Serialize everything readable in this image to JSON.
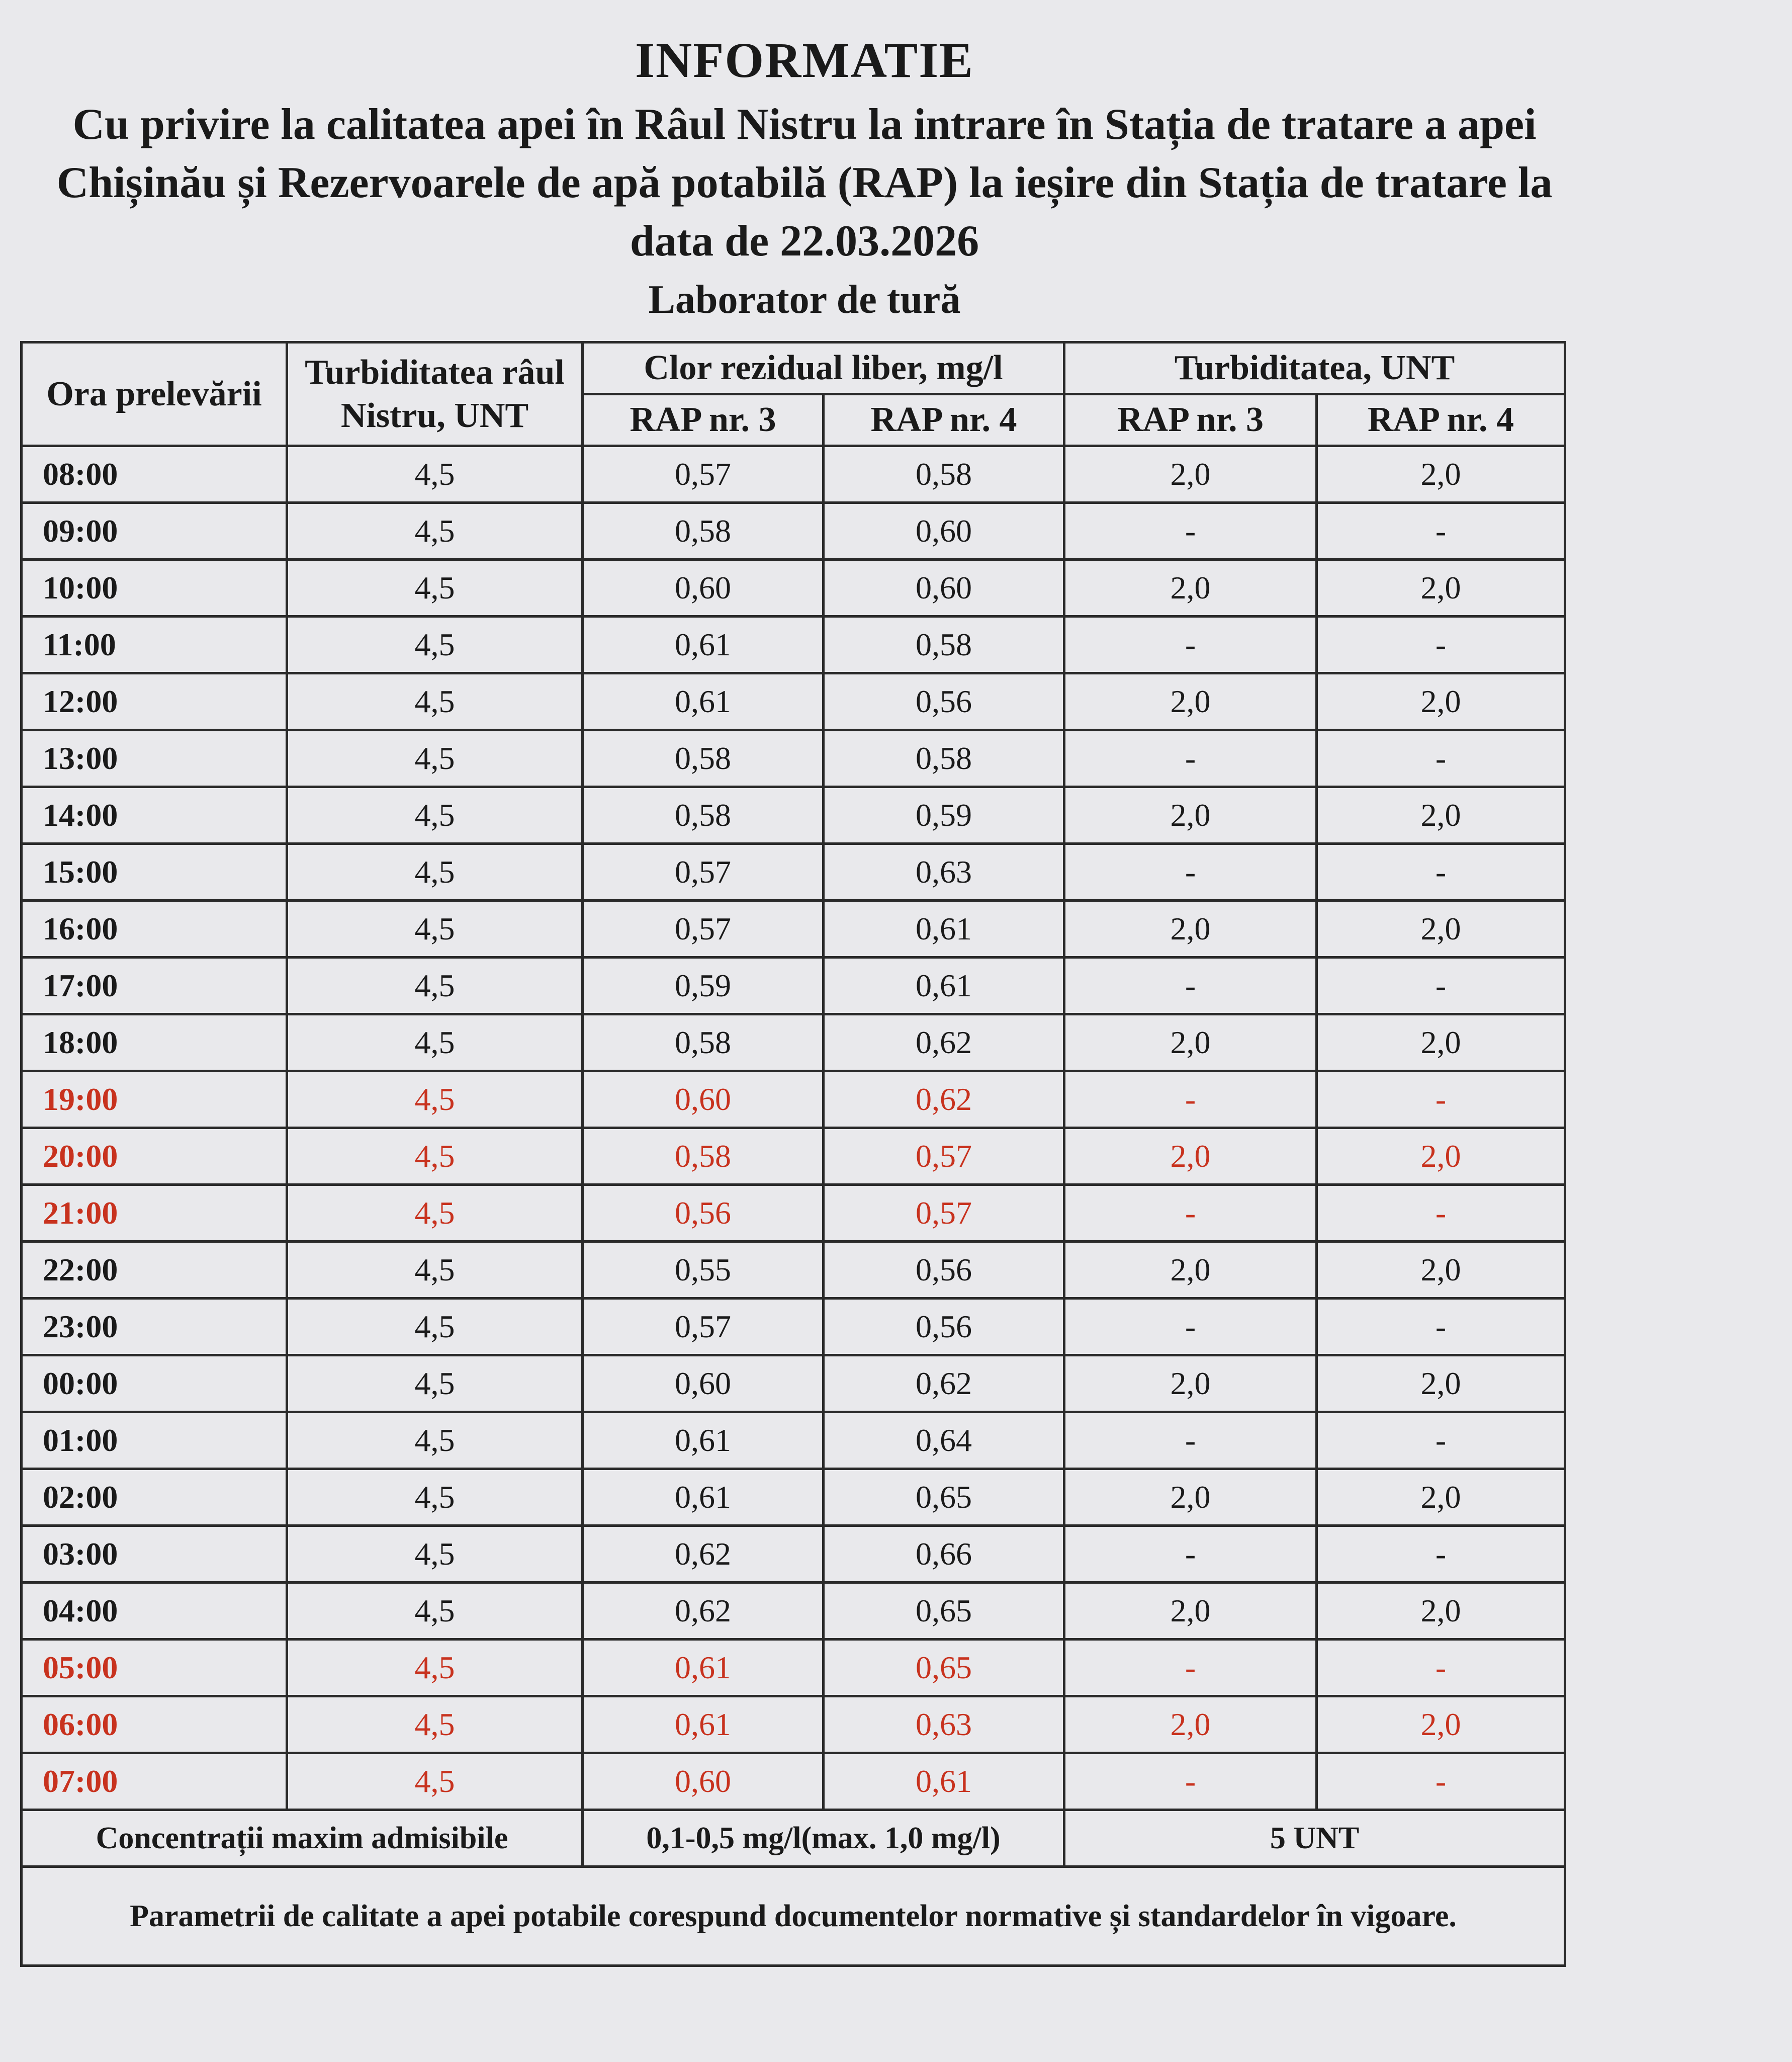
{
  "title": "INFORMATIE",
  "subtitle": "Cu privire la calitatea apei în Râul Nistru la intrare în Stația de tratare a apei Chișinău și Rezervoarele de apă potabilă (RAP) la ieșire din Stația de tratare la data de 22.03.2026",
  "lab": "Laborator de tură",
  "colors": {
    "highlight": "#c8321e",
    "text": "#1a1a1a"
  },
  "headers": {
    "time": "Ora prelevării",
    "turb_river": "Turbiditatea râul Nistru, UNT",
    "chlorine": "Clor rezidual liber, mg/l",
    "turbidity": "Turbiditatea, UNT",
    "rap3": "RAP nr. 3",
    "rap4": "RAP nr. 4"
  },
  "rows": [
    {
      "time": "08:00",
      "river": "4,5",
      "cl3": "0,57",
      "cl4": "0,58",
      "t3": "2,0",
      "t4": "2,0",
      "red": false
    },
    {
      "time": "09:00",
      "river": "4,5",
      "cl3": "0,58",
      "cl4": "0,60",
      "t3": "-",
      "t4": "-",
      "red": false
    },
    {
      "time": "10:00",
      "river": "4,5",
      "cl3": "0,60",
      "cl4": "0,60",
      "t3": "2,0",
      "t4": "2,0",
      "red": false
    },
    {
      "time": "11:00",
      "river": "4,5",
      "cl3": "0,61",
      "cl4": "0,58",
      "t3": "-",
      "t4": "-",
      "red": false
    },
    {
      "time": "12:00",
      "river": "4,5",
      "cl3": "0,61",
      "cl4": "0,56",
      "t3": "2,0",
      "t4": "2,0",
      "red": false
    },
    {
      "time": "13:00",
      "river": "4,5",
      "cl3": "0,58",
      "cl4": "0,58",
      "t3": "-",
      "t4": "-",
      "red": false
    },
    {
      "time": "14:00",
      "river": "4,5",
      "cl3": "0,58",
      "cl4": "0,59",
      "t3": "2,0",
      "t4": "2,0",
      "red": false
    },
    {
      "time": "15:00",
      "river": "4,5",
      "cl3": "0,57",
      "cl4": "0,63",
      "t3": "-",
      "t4": "-",
      "red": false
    },
    {
      "time": "16:00",
      "river": "4,5",
      "cl3": "0,57",
      "cl4": "0,61",
      "t3": "2,0",
      "t4": "2,0",
      "red": false
    },
    {
      "time": "17:00",
      "river": "4,5",
      "cl3": "0,59",
      "cl4": "0,61",
      "t3": "-",
      "t4": "-",
      "red": false
    },
    {
      "time": "18:00",
      "river": "4,5",
      "cl3": "0,58",
      "cl4": "0,62",
      "t3": "2,0",
      "t4": "2,0",
      "red": false
    },
    {
      "time": "19:00",
      "river": "4,5",
      "cl3": "0,60",
      "cl4": "0,62",
      "t3": "-",
      "t4": "-",
      "red": true
    },
    {
      "time": "20:00",
      "river": "4,5",
      "cl3": "0,58",
      "cl4": "0,57",
      "t3": "2,0",
      "t4": "2,0",
      "red": true
    },
    {
      "time": "21:00",
      "river": "4,5",
      "cl3": "0,56",
      "cl4": "0,57",
      "t3": "-",
      "t4": "-",
      "red": true
    },
    {
      "time": "22:00",
      "river": "4,5",
      "cl3": "0,55",
      "cl4": "0,56",
      "t3": "2,0",
      "t4": "2,0",
      "red": false
    },
    {
      "time": "23:00",
      "river": "4,5",
      "cl3": "0,57",
      "cl4": "0,56",
      "t3": "-",
      "t4": "-",
      "red": false
    },
    {
      "time": "00:00",
      "river": "4,5",
      "cl3": "0,60",
      "cl4": "0,62",
      "t3": "2,0",
      "t4": "2,0",
      "red": false
    },
    {
      "time": "01:00",
      "river": "4,5",
      "cl3": "0,61",
      "cl4": "0,64",
      "t3": "-",
      "t4": "-",
      "red": false
    },
    {
      "time": "02:00",
      "river": "4,5",
      "cl3": "0,61",
      "cl4": "0,65",
      "t3": "2,0",
      "t4": "2,0",
      "red": false
    },
    {
      "time": "03:00",
      "river": "4,5",
      "cl3": "0,62",
      "cl4": "0,66",
      "t3": "-",
      "t4": "-",
      "red": false
    },
    {
      "time": "04:00",
      "river": "4,5",
      "cl3": "0,62",
      "cl4": "0,65",
      "t3": "2,0",
      "t4": "2,0",
      "red": false
    },
    {
      "time": "05:00",
      "river": "4,5",
      "cl3": "0,61",
      "cl4": "0,65",
      "t3": "-",
      "t4": "-",
      "red": true
    },
    {
      "time": "06:00",
      "river": "4,5",
      "cl3": "0,61",
      "cl4": "0,63",
      "t3": "2,0",
      "t4": "2,0",
      "red": true
    },
    {
      "time": "07:00",
      "river": "4,5",
      "cl3": "0,60",
      "cl4": "0,61",
      "t3": "-",
      "t4": "-",
      "red": true
    }
  ],
  "limits": {
    "label": "Concentrații maxim admisibile",
    "chlorine": "0,1-0,5 mg/l(max. 1,0 mg/l)",
    "turbidity": "5 UNT"
  },
  "conclusion": "Parametrii de calitate a apei potabile corespund documentelor normative și standardelor în vigoare."
}
